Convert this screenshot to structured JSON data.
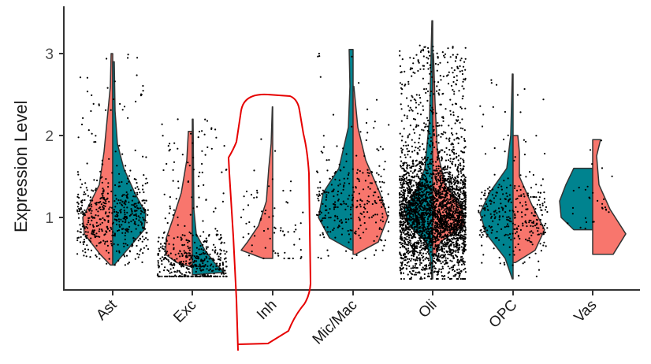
{
  "chart_data": {
    "type": "violin",
    "subtype": "split-violin with jittered points",
    "title": "",
    "xlabel": "",
    "ylabel": "Expression Level",
    "ylim": [
      0.1,
      3.55
    ],
    "yticks": [
      1,
      2,
      3
    ],
    "categories": [
      "Ast",
      "Exc",
      "Inh",
      "Mic/Mac",
      "Oli",
      "OPC",
      "Vas"
    ],
    "grid": false,
    "legend": "none",
    "split_colors": {
      "salmon": "#F8766D",
      "teal": "#00838F"
    },
    "series": [
      {
        "name": "salmon (left/right split half)",
        "color": "#F8766D",
        "median_approx": [
          0.9,
          0.65,
          0.7,
          1.1,
          1.0,
          0.9,
          0.85
        ],
        "max_approx": [
          3.0,
          2.05,
          2.35,
          3.05,
          3.05,
          2.0,
          1.95
        ],
        "min_approx": [
          0.42,
          0.4,
          0.5,
          0.55,
          0.55,
          0.5,
          0.55
        ]
      },
      {
        "name": "teal (left/right split half)",
        "color": "#00838F",
        "median_approx": [
          1.0,
          0.4,
          null,
          1.2,
          1.0,
          1.0,
          1.1
        ],
        "max_approx": [
          2.9,
          2.2,
          null,
          3.05,
          3.4,
          2.75,
          1.6
        ],
        "min_approx": [
          0.42,
          0.3,
          null,
          0.55,
          0.25,
          0.25,
          0.85
        ]
      }
    ],
    "annotations": [
      {
        "type": "hand-drawn red outline",
        "color": "#E00000",
        "target": "Inh"
      }
    ]
  },
  "axes": {
    "ylabel": "Expression Level",
    "yticks": [
      "1",
      "2",
      "3"
    ],
    "xticks": [
      "Ast",
      "Exc",
      "Inh",
      "Mic/Mac",
      "Oli",
      "OPC",
      "Vas"
    ]
  }
}
